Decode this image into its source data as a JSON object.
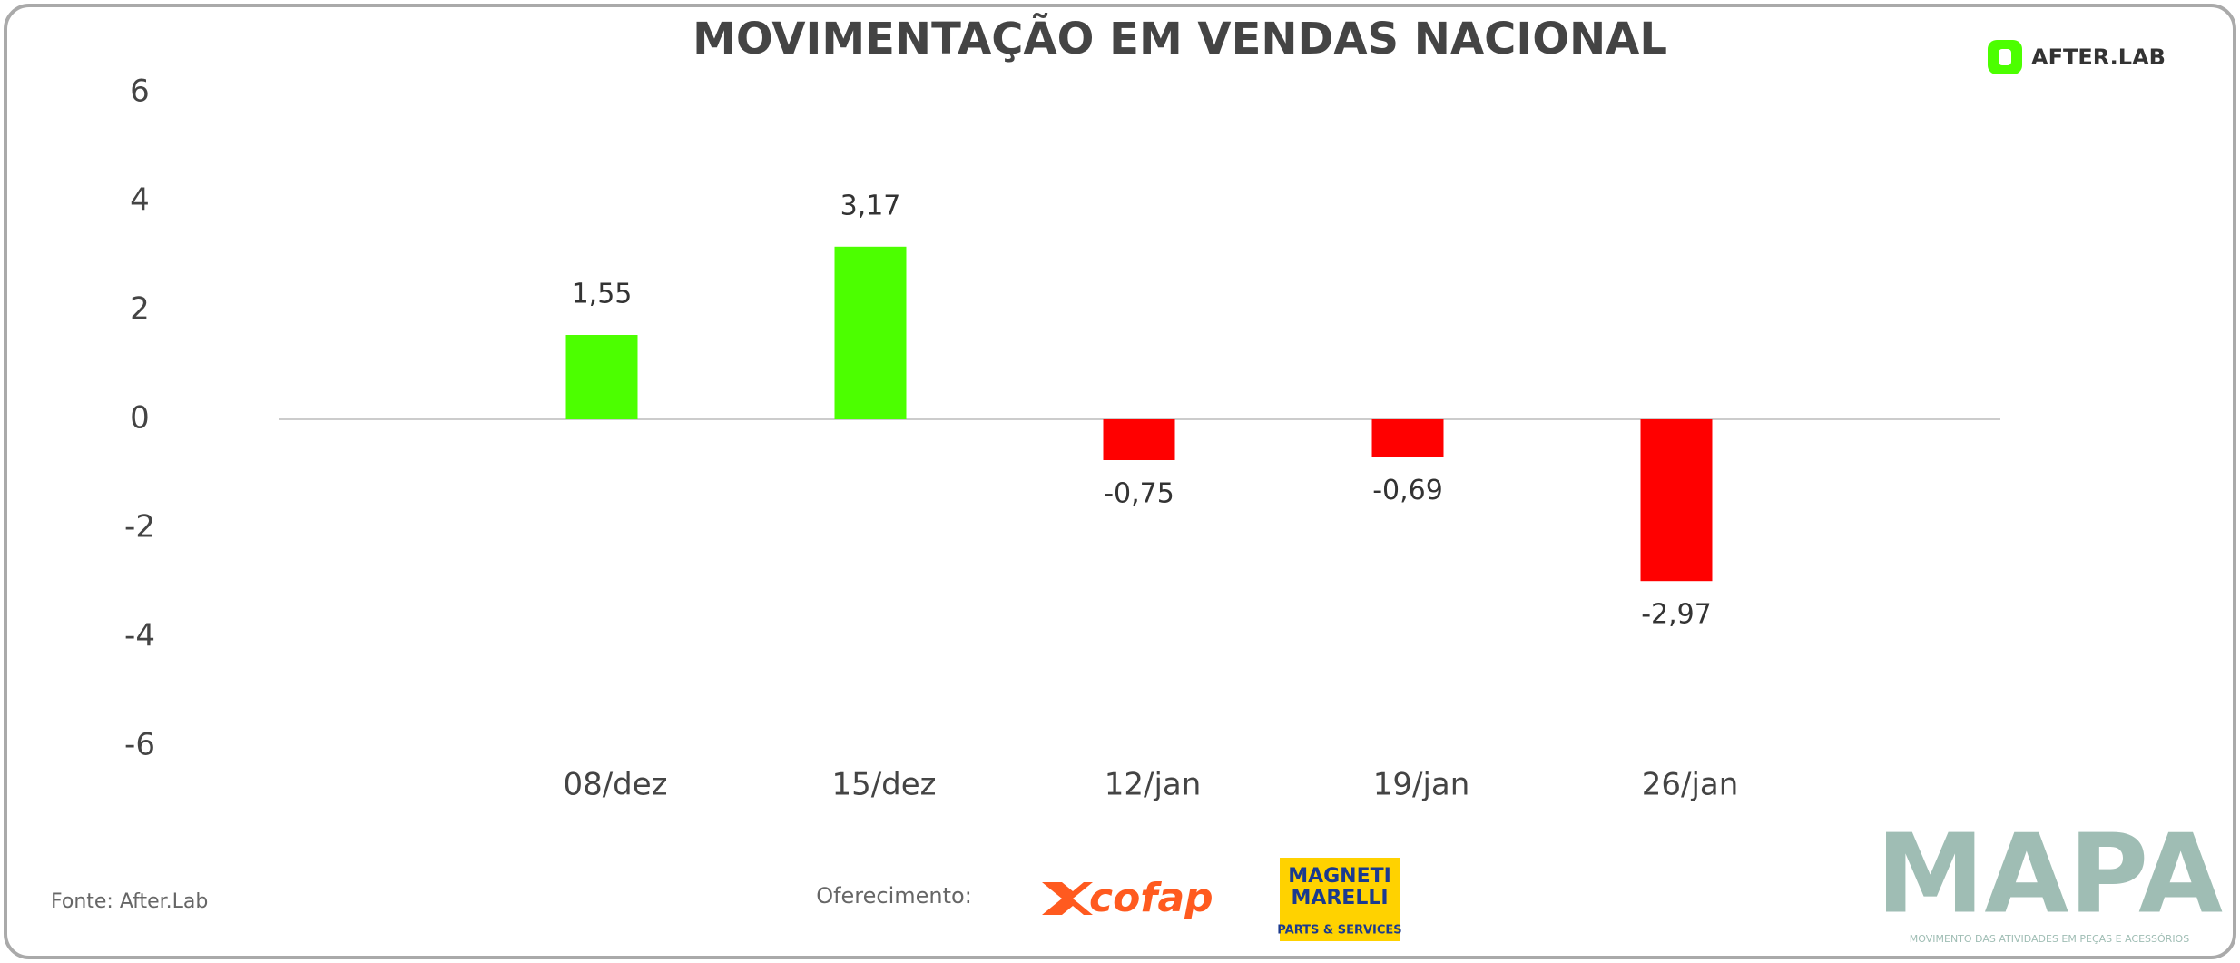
{
  "chart_data": {
    "type": "bar",
    "title": "MOVIMENTAÇÃO EM VENDAS NACIONAL",
    "categories": [
      "08/dez",
      "15/dez",
      "12/jan",
      "19/jan",
      "26/jan"
    ],
    "values": [
      1.55,
      3.17,
      -0.75,
      -0.69,
      -2.97
    ],
    "value_labels": [
      "1,55",
      "3,17",
      "-0,75",
      "-0,69",
      "-2,97"
    ],
    "colors": [
      "#4cff00",
      "#4cff00",
      "#ff0000",
      "#ff0000",
      "#ff0000"
    ],
    "ylim": [
      -6,
      6
    ],
    "yticks": [
      -6,
      -4,
      -2,
      0,
      2,
      4,
      6
    ]
  },
  "branding": {
    "logo": "AFTER.LAB",
    "source": "Fonte: After.Lab",
    "sponsor_label": "Oferecimento:",
    "sponsor_1": "cofap",
    "sponsor_2_line_1": "MAGNETI",
    "sponsor_2_line_2": "MARELLI",
    "sponsor_2_tagline": "PARTS & SERVICES",
    "brand": "MAPA",
    "brand_tagline": "MOVIMENTO DAS ATIVIDADES EM PEÇAS E ACESSÓRIOS"
  }
}
